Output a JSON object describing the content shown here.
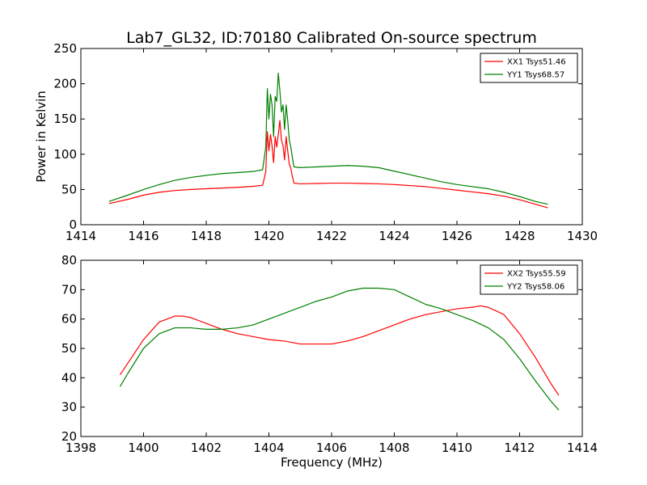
{
  "chart_data": [
    {
      "type": "line",
      "title": "Lab7_GL32, ID:70180 Calibrated On-source spectrum",
      "xlabel": "",
      "ylabel": "Power in Kelvin",
      "xlim": [
        1414,
        1430
      ],
      "ylim": [
        0,
        250
      ],
      "xticks": [
        1414,
        1416,
        1418,
        1420,
        1422,
        1424,
        1426,
        1428,
        1430
      ],
      "yticks": [
        0,
        50,
        100,
        150,
        200,
        250
      ],
      "grid": false,
      "legend_position": "top-right",
      "series": [
        {
          "name": "XX1 Tsys51.46",
          "color": "#ff0000",
          "x": [
            1414.9,
            1415.5,
            1416,
            1416.5,
            1417,
            1417.5,
            1418,
            1418.5,
            1419,
            1419.5,
            1419.8,
            1419.9,
            1419.95,
            1420.0,
            1420.05,
            1420.1,
            1420.15,
            1420.2,
            1420.25,
            1420.3,
            1420.35,
            1420.4,
            1420.45,
            1420.5,
            1420.55,
            1420.6,
            1420.65,
            1420.7,
            1420.75,
            1420.8,
            1421,
            1421.5,
            1422,
            1422.5,
            1423,
            1423.5,
            1424,
            1424.5,
            1425,
            1425.5,
            1426,
            1426.5,
            1427,
            1427.5,
            1428,
            1428.5,
            1428.9
          ],
          "y": [
            30,
            36,
            42,
            46,
            48.5,
            50,
            51,
            52,
            53,
            54.5,
            56,
            75,
            132,
            105,
            128,
            112,
            88,
            125,
            110,
            128,
            148,
            120,
            112,
            92,
            125,
            105,
            86,
            80,
            68,
            59,
            58,
            58.5,
            59,
            59,
            58.5,
            58,
            57,
            55.5,
            54,
            51.5,
            49,
            46.5,
            44,
            40.5,
            35.5,
            29,
            24
          ]
        },
        {
          "name": "YY1 Tsys68.57",
          "color": "#008000",
          "x": [
            1414.9,
            1415.5,
            1416,
            1416.5,
            1417,
            1417.5,
            1418,
            1418.5,
            1419,
            1419.5,
            1419.8,
            1419.9,
            1419.95,
            1420.0,
            1420.05,
            1420.1,
            1420.15,
            1420.2,
            1420.25,
            1420.3,
            1420.35,
            1420.4,
            1420.45,
            1420.5,
            1420.55,
            1420.6,
            1420.65,
            1420.7,
            1420.75,
            1420.8,
            1421,
            1421.5,
            1422,
            1422.5,
            1423,
            1423.5,
            1424,
            1424.5,
            1425,
            1425.5,
            1426,
            1426.5,
            1427,
            1427.5,
            1428,
            1428.5,
            1428.9
          ],
          "y": [
            33,
            42,
            50,
            57,
            63,
            67,
            70,
            72.5,
            74,
            75.5,
            78,
            110,
            193,
            150,
            185,
            170,
            125,
            182,
            175,
            215,
            190,
            160,
            170,
            135,
            170,
            148,
            120,
            110,
            95,
            82,
            81,
            82,
            83,
            84,
            83,
            81,
            76,
            71,
            66,
            61,
            57,
            54,
            51,
            46,
            40,
            33,
            29
          ]
        }
      ]
    },
    {
      "type": "line",
      "title": "",
      "xlabel": "Frequency (MHz)",
      "ylabel": "",
      "xlim": [
        1398,
        1414
      ],
      "ylim": [
        20,
        80
      ],
      "xticks": [
        1398,
        1400,
        1402,
        1404,
        1406,
        1408,
        1410,
        1412,
        1414
      ],
      "yticks": [
        20,
        30,
        40,
        50,
        60,
        70,
        80
      ],
      "grid": false,
      "legend_position": "top-right",
      "series": [
        {
          "name": "XX2 Tsys55.59",
          "color": "#ff0000",
          "x": [
            1399.25,
            1399.5,
            1400,
            1400.5,
            1401,
            1401.25,
            1401.5,
            1402,
            1402.5,
            1403,
            1403.5,
            1404,
            1404.5,
            1405,
            1405.5,
            1406,
            1406.5,
            1407,
            1407.5,
            1408,
            1408.5,
            1409,
            1409.5,
            1410,
            1410.5,
            1410.75,
            1411,
            1411.5,
            1412,
            1412.5,
            1413,
            1413.25
          ],
          "y": [
            41,
            45,
            53,
            59,
            61,
            61,
            60.5,
            58.5,
            56.5,
            55,
            54,
            53,
            52.5,
            51.5,
            51.5,
            51.5,
            52.5,
            54,
            56,
            58,
            60,
            61.5,
            62.5,
            63.5,
            64,
            64.5,
            64,
            61.5,
            55,
            47,
            38,
            34
          ]
        },
        {
          "name": "YY2 Tsys58.06",
          "color": "#008000",
          "x": [
            1399.25,
            1399.5,
            1400,
            1400.5,
            1401,
            1401.5,
            1402,
            1402.5,
            1403,
            1403.5,
            1404,
            1404.5,
            1405,
            1405.5,
            1406,
            1406.5,
            1407,
            1407.5,
            1408,
            1408.5,
            1409,
            1409.5,
            1410,
            1410.5,
            1411,
            1411.5,
            1412,
            1412.5,
            1413,
            1413.25
          ],
          "y": [
            37,
            41.5,
            50,
            55,
            57,
            57,
            56.5,
            56.5,
            57,
            58,
            60,
            62,
            64,
            66,
            67.5,
            69.5,
            70.5,
            70.5,
            70,
            67.5,
            65,
            63.5,
            61.5,
            59.5,
            57,
            53,
            46.5,
            39,
            32,
            29
          ]
        }
      ]
    }
  ]
}
